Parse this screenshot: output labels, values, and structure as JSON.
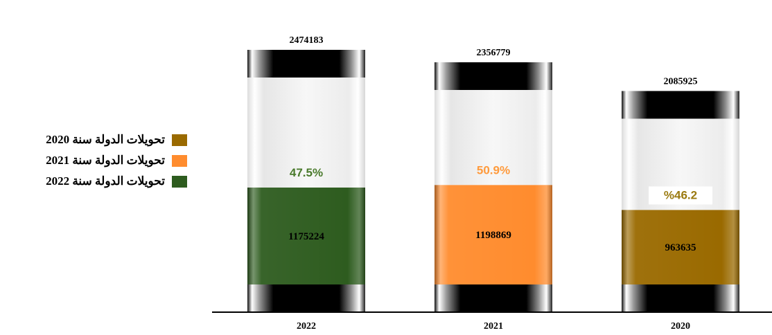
{
  "chart_data": {
    "type": "bar",
    "subtype": "stacked cylinder",
    "categories": [
      "2022",
      "2021",
      "2020"
    ],
    "totals": [
      2474183,
      2356779,
      2085925
    ],
    "values": [
      1175224,
      1198869,
      963635
    ],
    "percent_labels": [
      "47.5%",
      "50.9%",
      "%46.2"
    ],
    "series": [
      {
        "name": "تحويلات الدولة سنة 2022",
        "color": "#2e5c1f",
        "text_color": "#4a7a2c"
      },
      {
        "name": "تحويلات الدولة سنة 2021",
        "color": "#ff8c2e",
        "text_color": "#ff9a3c"
      },
      {
        "name": "تحويلات الدولة سنة 2020",
        "color": "#9a6a00",
        "text_color": "#9a7a10"
      }
    ],
    "legend": {
      "position": "left",
      "entries": [
        {
          "label": "تحويلات الدولة سنة 2020",
          "color": "#9a6a00"
        },
        {
          "label": "تحويلات الدولة سنة 2021",
          "color": "#ff8c2e"
        },
        {
          "label": "تحويلات الدولة سنة 2022",
          "color": "#2e5c1f"
        }
      ]
    },
    "ylim": [
      0,
      2600000
    ],
    "grid": false,
    "title": "",
    "xlabel": "",
    "ylabel": ""
  }
}
